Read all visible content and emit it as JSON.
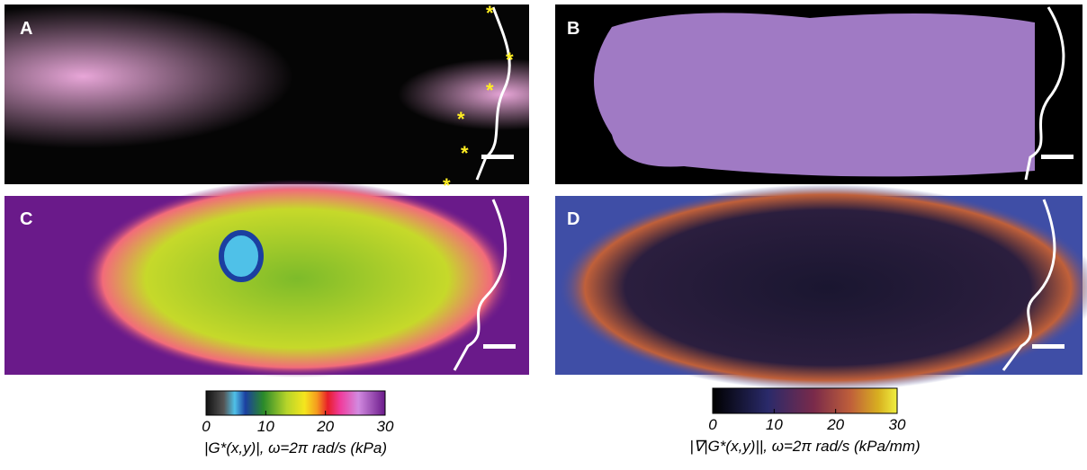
{
  "panels": [
    {
      "label": "A"
    },
    {
      "label": "B"
    },
    {
      "label": "C"
    },
    {
      "label": "D"
    }
  ],
  "colorbars": [
    {
      "label": "|G*(x,y)|, ω=2π rad/s (kPa)",
      "lim": [
        0,
        30
      ],
      "ticks": [
        0,
        10,
        20,
        30
      ]
    },
    {
      "label": "|∇|G*(x,y)||, ω=2π rad/s (kPa/mm)",
      "lim": [
        0,
        30
      ],
      "ticks": [
        0,
        10,
        20,
        30
      ]
    }
  ]
}
